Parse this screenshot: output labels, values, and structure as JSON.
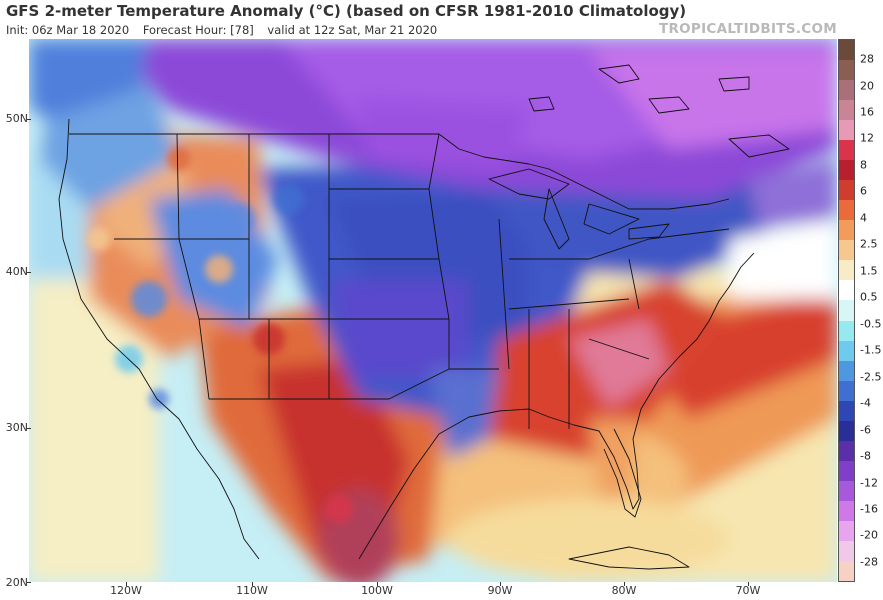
{
  "header": {
    "title": "GFS 2-meter Temperature Anomaly (°C) (based on CFSR 1981-2010 Climatology)",
    "init": "Init: 06z Mar 18 2020",
    "forecast_hour": "Forecast Hour: [78]",
    "valid": "valid at 12z Sat, Mar 21 2020",
    "brand": "TROPICALTIDBITS.COM"
  },
  "map": {
    "type": "temperature-anomaly-map",
    "region": "Continental United States",
    "lat_labels": [
      "50N",
      "40N",
      "30N",
      "20N"
    ],
    "lon_labels": [
      "120W",
      "110W",
      "100W",
      "90W",
      "80W",
      "70W"
    ],
    "colors": {
      "deep_purple": "#9a3fe0",
      "purple": "#8a4fd8",
      "light_purple": "#b55ce8",
      "blue": "#3f59c9",
      "light_blue": "#5c8be0",
      "sky": "#8fc6ef",
      "pale_cyan": "#c4eef6",
      "cream": "#f7edc0",
      "orange": "#f3b26d",
      "red_orange": "#e2713f",
      "red": "#cc3b2f",
      "dark_red": "#a81f2d",
      "pink": "#e089a7"
    }
  },
  "colorbar": {
    "labels": [
      "28",
      "20",
      "16",
      "12",
      "8",
      "6",
      "4",
      "2.5",
      "1.5",
      "0.5",
      "-0.5",
      "-1.5",
      "-2.5",
      "-4",
      "-6",
      "-8",
      "-12",
      "-16",
      "-20",
      "-28"
    ],
    "colors": [
      "#6b4a3a",
      "#8b5e54",
      "#a9707a",
      "#c98595",
      "#e79ab5",
      "#d9344b",
      "#b8202f",
      "#cf3d2f",
      "#ea6a3c",
      "#f29b5a",
      "#f6c890",
      "#f8ecc6",
      "#ffffff",
      "#d8f6f6",
      "#96e9ef",
      "#6fcbed",
      "#4f97df",
      "#3f6fd0",
      "#2f47b4",
      "#2a2f98",
      "#5a2fa8",
      "#7f3fc8",
      "#a759db",
      "#cf79e8",
      "#e6a5ee",
      "#f1c9e8",
      "#f7d1c4"
    ]
  }
}
